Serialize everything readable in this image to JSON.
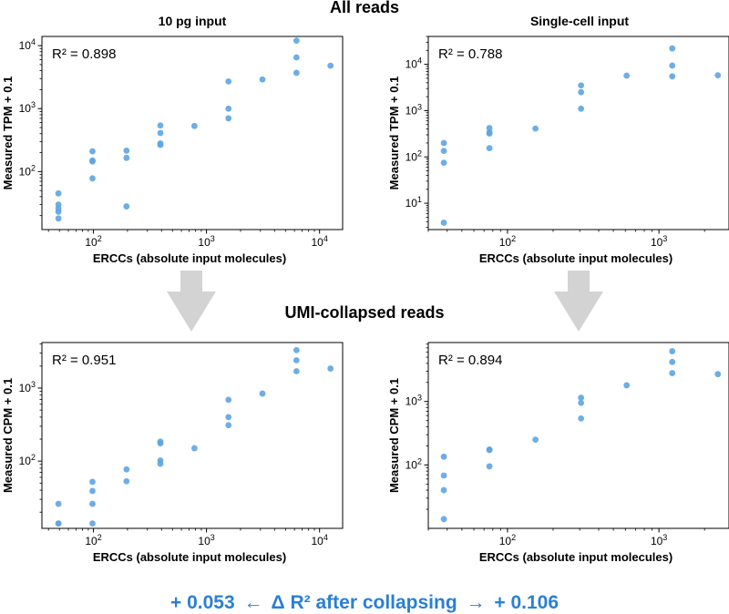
{
  "titles": {
    "top": "All reads",
    "middle": "UMI-collapsed reads"
  },
  "columns": [
    "10 pg input",
    "Single-cell input"
  ],
  "footer": {
    "left": "+ 0.053",
    "middle": "Δ R² after collapsing",
    "right": "+ 0.106",
    "color": "#2b7fd4"
  },
  "colors": {
    "points": "#5ea4e2",
    "arrow": "#d3d3d3",
    "frame": "#000000"
  },
  "chart_data": [
    {
      "id": "tpm-10pg",
      "type": "scatter",
      "title": "10 pg input",
      "xlabel": "ERCCs (absolute input molecules)",
      "ylabel": "Measured TPM + 0.1",
      "xscale": "log",
      "yscale": "log",
      "xlim": [
        35,
        16000
      ],
      "ylim": [
        12,
        14000
      ],
      "xticks": [
        {
          "v": 100,
          "b": "10",
          "e": "2"
        },
        {
          "v": 1000,
          "b": "10",
          "e": "3"
        },
        {
          "v": 10000,
          "b": "10",
          "e": "4"
        }
      ],
      "yticks": [
        {
          "v": 100,
          "b": "10",
          "e": "2"
        },
        {
          "v": 1000,
          "b": "10",
          "e": "3"
        },
        {
          "v": 10000,
          "b": "10",
          "e": "4"
        }
      ],
      "r2_label": "R² = 0.898",
      "points": [
        [
          49,
          45
        ],
        [
          49,
          30
        ],
        [
          49,
          26
        ],
        [
          49,
          23
        ],
        [
          49,
          18
        ],
        [
          98,
          210
        ],
        [
          98,
          150
        ],
        [
          98,
          145
        ],
        [
          98,
          78
        ],
        [
          196,
          215
        ],
        [
          196,
          165
        ],
        [
          196,
          28
        ],
        [
          391,
          540
        ],
        [
          391,
          410
        ],
        [
          391,
          280
        ],
        [
          391,
          265
        ],
        [
          782,
          530
        ],
        [
          1564,
          2700
        ],
        [
          1564,
          1000
        ],
        [
          1564,
          700
        ],
        [
          3125,
          2900
        ],
        [
          6250,
          12000
        ],
        [
          6250,
          6500
        ],
        [
          6250,
          3700
        ],
        [
          12500,
          4800
        ]
      ]
    },
    {
      "id": "tpm-single-cell",
      "type": "scatter",
      "title": "Single-cell input",
      "xlabel": "ERCCs (absolute input molecules)",
      "ylabel": "Measured TPM + 0.1",
      "xscale": "log",
      "yscale": "log",
      "xlim": [
        30,
        2900
      ],
      "ylim": [
        2.7,
        40000
      ],
      "xticks": [
        {
          "v": 100,
          "b": "10",
          "e": "2"
        },
        {
          "v": 1000,
          "b": "10",
          "e": "3"
        }
      ],
      "yticks": [
        {
          "v": 10,
          "b": "10",
          "e": "1"
        },
        {
          "v": 100,
          "b": "10",
          "e": "2"
        },
        {
          "v": 1000,
          "b": "10",
          "e": "3"
        },
        {
          "v": 10000,
          "b": "10",
          "e": "4"
        }
      ],
      "r2_label": "R² = 0.788",
      "points": [
        [
          38,
          200
        ],
        [
          38,
          135
        ],
        [
          38,
          75
        ],
        [
          38,
          3.8
        ],
        [
          76,
          420
        ],
        [
          76,
          340
        ],
        [
          76,
          320
        ],
        [
          76,
          155
        ],
        [
          153,
          410
        ],
        [
          306,
          3500
        ],
        [
          306,
          2500
        ],
        [
          306,
          1100
        ],
        [
          612,
          5700
        ],
        [
          1224,
          22000
        ],
        [
          1224,
          9400
        ],
        [
          1224,
          5500
        ],
        [
          2448,
          5800
        ]
      ]
    },
    {
      "id": "cpm-10pg",
      "type": "scatter",
      "title": "",
      "xlabel": "ERCCs (absolute input molecules)",
      "ylabel": "Measured CPM + 0.1",
      "xscale": "log",
      "yscale": "log",
      "xlim": [
        35,
        16000
      ],
      "ylim": [
        12,
        4200
      ],
      "xticks": [
        {
          "v": 100,
          "b": "10",
          "e": "2"
        },
        {
          "v": 1000,
          "b": "10",
          "e": "3"
        },
        {
          "v": 10000,
          "b": "10",
          "e": "4"
        }
      ],
      "yticks": [
        {
          "v": 100,
          "b": "10",
          "e": "2"
        },
        {
          "v": 1000,
          "b": "10",
          "e": "3"
        }
      ],
      "r2_label": "R² = 0.951",
      "points": [
        [
          49,
          26
        ],
        [
          49,
          14
        ],
        [
          49,
          14
        ],
        [
          98,
          52
        ],
        [
          98,
          39
        ],
        [
          98,
          26
        ],
        [
          98,
          14
        ],
        [
          196,
          77
        ],
        [
          196,
          53
        ],
        [
          391,
          185
        ],
        [
          391,
          175
        ],
        [
          391,
          102
        ],
        [
          391,
          92
        ],
        [
          782,
          150
        ],
        [
          1564,
          690
        ],
        [
          1564,
          400
        ],
        [
          1564,
          310
        ],
        [
          3125,
          840
        ],
        [
          6250,
          3300
        ],
        [
          6250,
          2400
        ],
        [
          6250,
          1700
        ],
        [
          12500,
          1850
        ]
      ]
    },
    {
      "id": "cpm-single-cell",
      "type": "scatter",
      "title": "",
      "xlabel": "ERCCs (absolute input molecules)",
      "ylabel": "Measured CPM + 0.1",
      "xscale": "log",
      "yscale": "log",
      "xlim": [
        30,
        2900
      ],
      "ylim": [
        10,
        8500
      ],
      "xticks": [
        {
          "v": 100,
          "b": "10",
          "e": "2"
        },
        {
          "v": 1000,
          "b": "10",
          "e": "3"
        }
      ],
      "yticks": [
        {
          "v": 100,
          "b": "10",
          "e": "2"
        },
        {
          "v": 1000,
          "b": "10",
          "e": "3"
        }
      ],
      "r2_label": "R² = 0.894",
      "points": [
        [
          38,
          135
        ],
        [
          38,
          68
        ],
        [
          38,
          40
        ],
        [
          38,
          14
        ],
        [
          76,
          175
        ],
        [
          76,
          172
        ],
        [
          76,
          95
        ],
        [
          153,
          250
        ],
        [
          306,
          1150
        ],
        [
          306,
          950
        ],
        [
          306,
          540
        ],
        [
          612,
          1800
        ],
        [
          1224,
          6200
        ],
        [
          1224,
          4200
        ],
        [
          1224,
          2800
        ],
        [
          2448,
          2700
        ]
      ]
    }
  ]
}
